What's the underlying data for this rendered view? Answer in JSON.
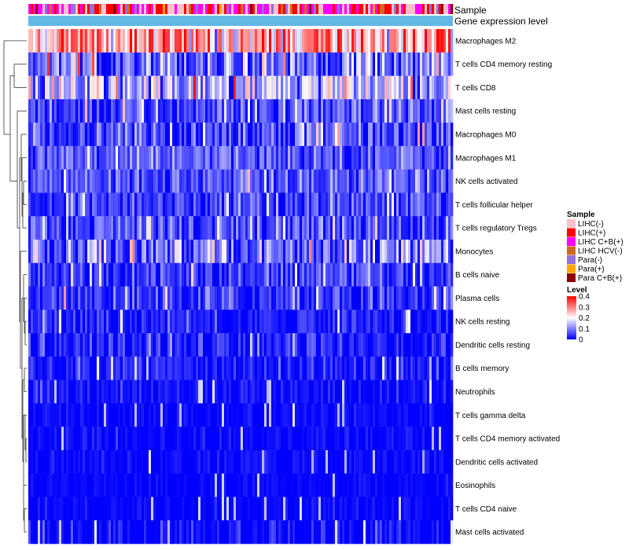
{
  "chart_data": {
    "type": "heatmap",
    "annotation_rows": [
      "Sample",
      "Gene expression level"
    ],
    "rows": [
      {
        "name": "Macrophages M2",
        "mean": 0.27,
        "sd": 0.09
      },
      {
        "name": "T cells CD4 memory resting",
        "mean": 0.09,
        "sd": 0.07
      },
      {
        "name": "T cells CD8",
        "mean": 0.13,
        "sd": 0.08
      },
      {
        "name": "Mast cells resting",
        "mean": 0.05,
        "sd": 0.05
      },
      {
        "name": "Macrophages M0",
        "mean": 0.05,
        "sd": 0.06
      },
      {
        "name": "Macrophages M1",
        "mean": 0.07,
        "sd": 0.04
      },
      {
        "name": "NK cells activated",
        "mean": 0.06,
        "sd": 0.04
      },
      {
        "name": "T cells follicular helper",
        "mean": 0.05,
        "sd": 0.04
      },
      {
        "name": "T cells regulatory  Tregs",
        "mean": 0.06,
        "sd": 0.05
      },
      {
        "name": "Monocytes",
        "mean": 0.09,
        "sd": 0.06
      },
      {
        "name": "B cells naive",
        "mean": 0.04,
        "sd": 0.04
      },
      {
        "name": "Plasma cells",
        "mean": 0.04,
        "sd": 0.04
      },
      {
        "name": "NK cells resting",
        "mean": 0.02,
        "sd": 0.03
      },
      {
        "name": "Dendritic cells resting",
        "mean": 0.02,
        "sd": 0.04
      },
      {
        "name": "B cells memory",
        "mean": 0.02,
        "sd": 0.03
      },
      {
        "name": "Neutrophils",
        "mean": 0.01,
        "sd": 0.02
      },
      {
        "name": "T cells gamma delta",
        "mean": 0.005,
        "sd": 0.015
      },
      {
        "name": "T cells CD4 memory activated",
        "mean": 0.005,
        "sd": 0.015
      },
      {
        "name": "Dendritic cells activated",
        "mean": 0.005,
        "sd": 0.015
      },
      {
        "name": "Eosinophils",
        "mean": 0.003,
        "sd": 0.01
      },
      {
        "name": "T cells CD4 naive",
        "mean": 0.004,
        "sd": 0.015
      },
      {
        "name": "Mast cells activated",
        "mean": 0.01,
        "sd": 0.03
      }
    ],
    "n_samples": 180,
    "color_scale": {
      "min": 0,
      "max": 0.4,
      "low": "#0000ff",
      "mid": "#ffffff",
      "high": "#ff0000",
      "mid_value": 0.2
    },
    "legend": {
      "sample_title": "Sample",
      "sample_entries": [
        {
          "label": "LIHC(-)",
          "color": "#ffc0cb"
        },
        {
          "label": "LIHC(+)",
          "color": "#ff0000"
        },
        {
          "label": "LIHC C+B(+)",
          "color": "#ff00ff"
        },
        {
          "label": "LIHC HCV(-)",
          "color": "#d2691e"
        },
        {
          "label": "Para(-)",
          "color": "#9370db"
        },
        {
          "label": "Para(+)",
          "color": "#ffa500"
        },
        {
          "label": "Para C+B(+)",
          "color": "#8b0000"
        }
      ],
      "level_title": "Level",
      "level_ticks": [
        "0.4",
        "0.3",
        "0.2",
        "0.1",
        "0"
      ],
      "level_tick_values": [
        0.4,
        0.3,
        0.2,
        0.1,
        0
      ]
    },
    "gene_expression_color": "#63b8e6",
    "dendrogram_side": "left"
  }
}
